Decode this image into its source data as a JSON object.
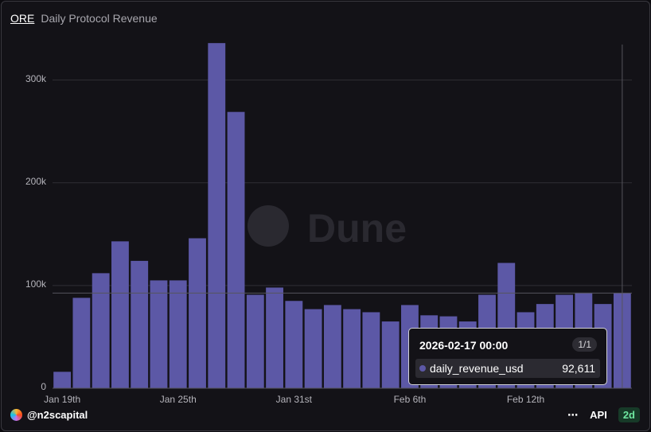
{
  "header": {
    "link": "ORE",
    "title": "Daily Protocol Revenue"
  },
  "watermark": "Dune",
  "chart_data": {
    "type": "bar",
    "categories": [
      "Jan 19th",
      null,
      null,
      null,
      null,
      null,
      "Jan 25th",
      null,
      null,
      null,
      null,
      null,
      "Jan 31st",
      null,
      null,
      null,
      null,
      null,
      "Feb 6th",
      null,
      null,
      null,
      null,
      null,
      "Feb 12th",
      null,
      null,
      null,
      null,
      null
    ],
    "series": [
      {
        "name": "daily_revenue_usd",
        "color": "#5c58a6",
        "values": [
          16000,
          88000,
          112000,
          143000,
          124000,
          105000,
          105000,
          146000,
          336000,
          269000,
          91000,
          98000,
          85000,
          77000,
          81000,
          77000,
          74000,
          65000,
          81000,
          71000,
          70000,
          65000,
          91000,
          122000,
          74000,
          82000,
          91000,
          93000,
          82000,
          92611
        ],
        "value_labels": [
          null,
          null,
          null,
          null,
          null,
          null,
          null,
          null,
          null,
          null,
          null,
          null,
          null,
          null,
          null,
          null,
          null,
          null,
          null,
          null,
          null,
          null,
          null,
          null,
          null,
          null,
          null,
          null,
          null,
          "92,611"
        ]
      }
    ],
    "ylim": [
      0,
      340000
    ],
    "yticks": [
      0,
      {
        "value": 100000,
        "label": "100k"
      },
      {
        "value": 200000,
        "label": "200k"
      },
      {
        "value": 300000,
        "label": "300k"
      }
    ],
    "grid": true,
    "tooltip": {
      "title": "2026-02-17 00:00",
      "page": "1/1"
    }
  },
  "footer": {
    "user": "@n2scapital",
    "api": "API",
    "refresh": "2d"
  }
}
